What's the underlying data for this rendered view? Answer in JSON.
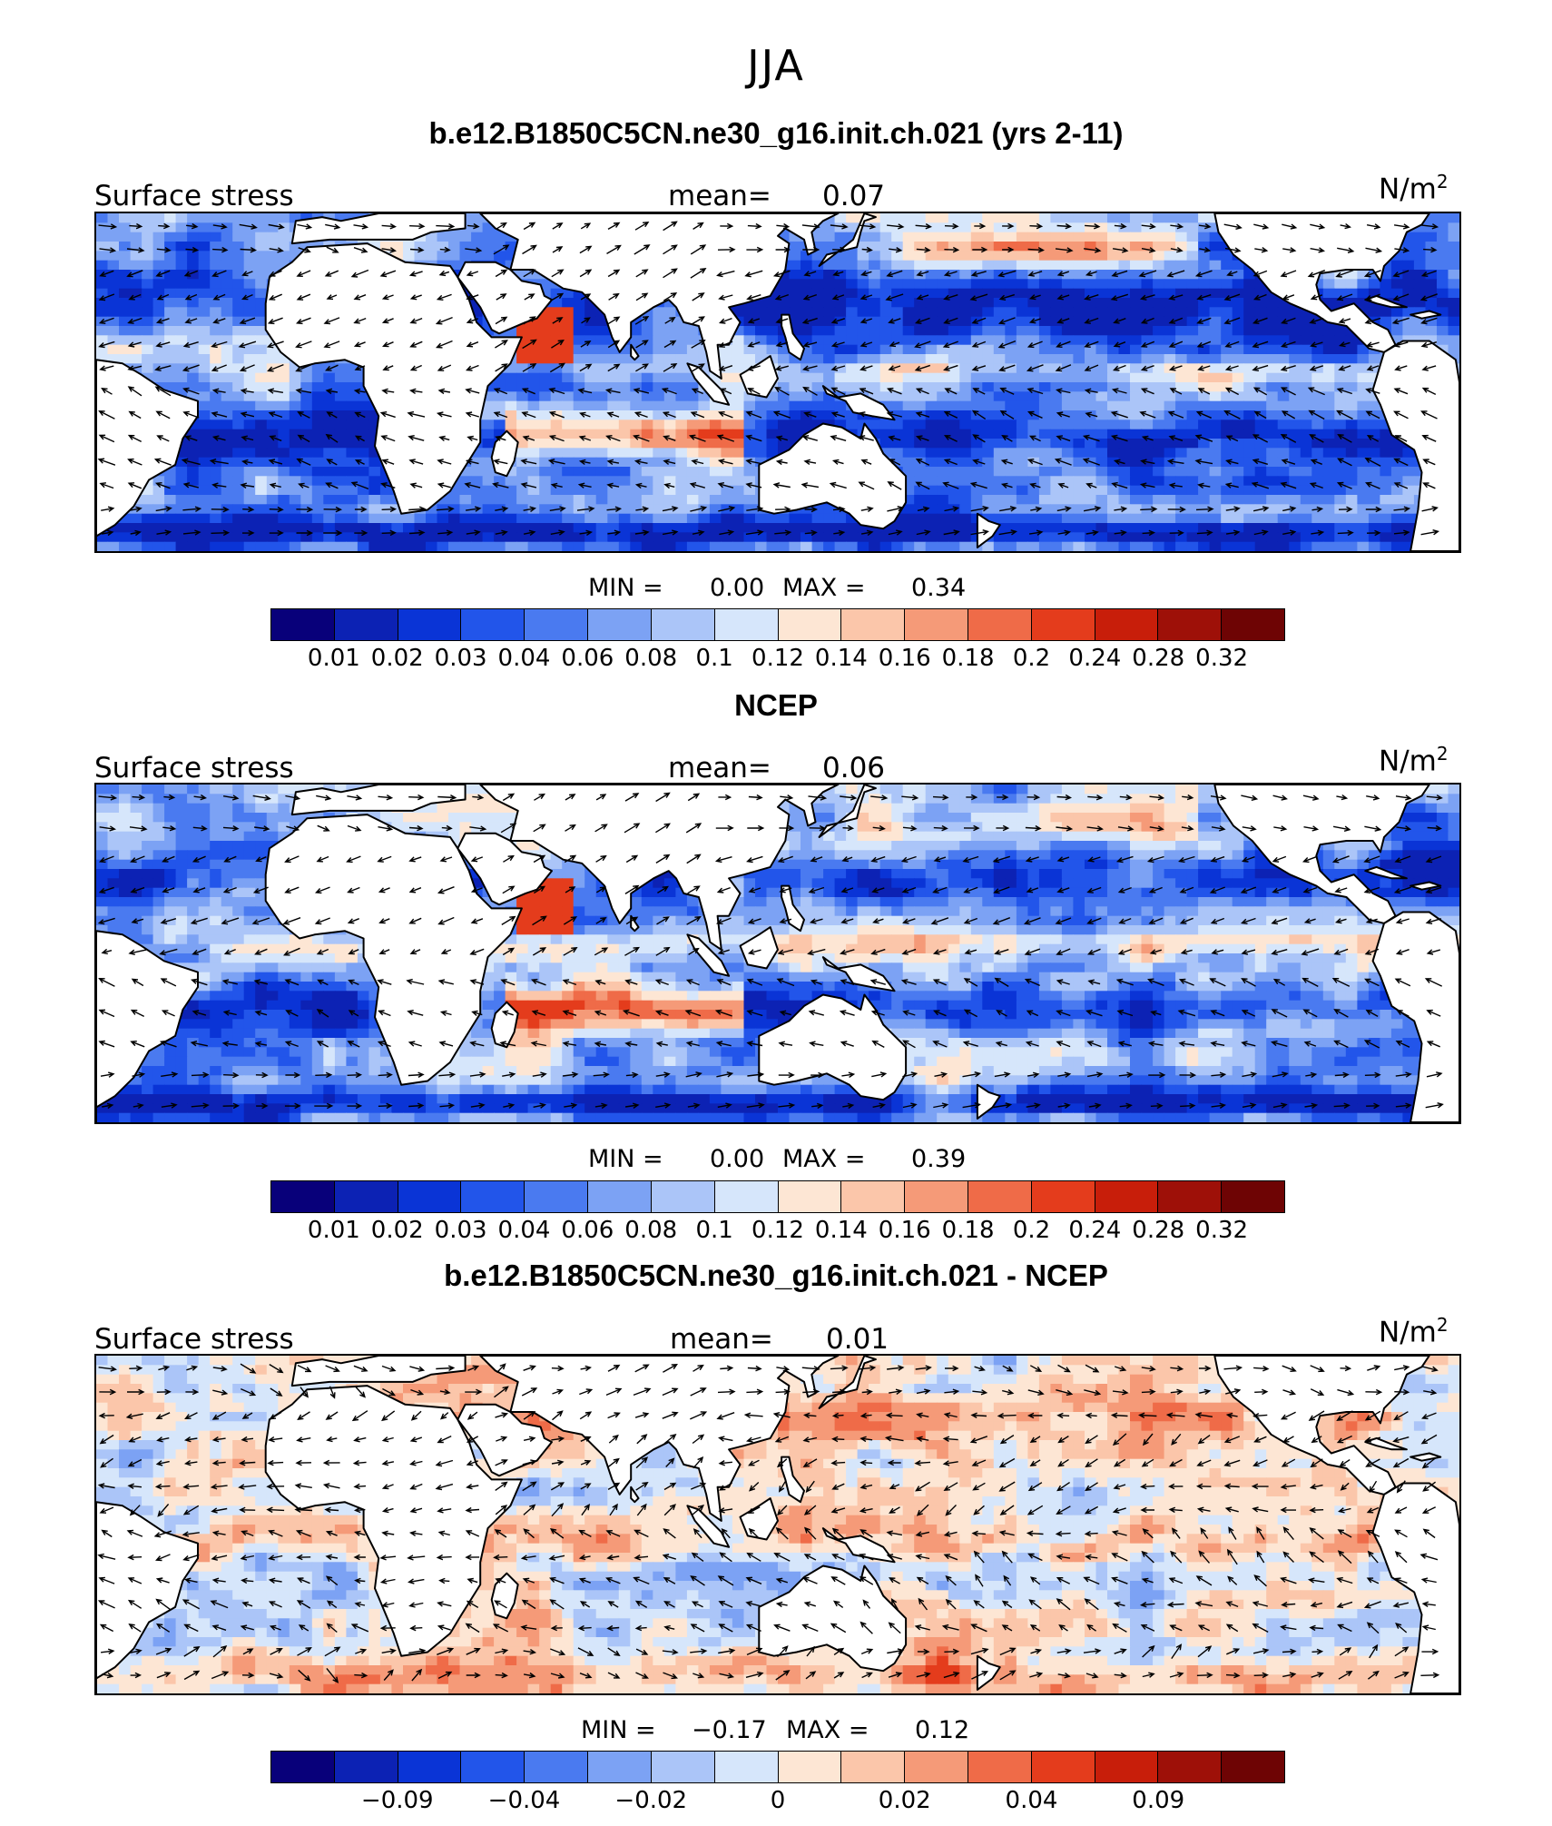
{
  "figure_title": "JJA",
  "palette": [
    "#08007a",
    "#0c22b4",
    "#0a34d6",
    "#2255ea",
    "#4a7af0",
    "#7ca2f4",
    "#abc5f8",
    "#d6e6fb",
    "#fde6d4",
    "#fbc6aa",
    "#f59a78",
    "#ef6b48",
    "#e43c1c",
    "#c81e0a",
    "#9e1008",
    "#6e0404"
  ],
  "land_color": "#ffffff",
  "panels": [
    {
      "title": "b.e12.B1850C5CN.ne30_g16.init.ch.021 (yrs 2-11)",
      "left_label": "Surface stress",
      "mean_label": "mean=",
      "mean_value": "0.07",
      "units": "N/m",
      "units_sup": "2",
      "min_label": "MIN =",
      "min_value": "0.00",
      "max_label": "MAX =",
      "max_value": "0.34",
      "colorbar_ticks": [
        "0.01",
        "0.02",
        "0.03",
        "0.04",
        "0.06",
        "0.08",
        "0.1",
        "0.12",
        "0.14",
        "0.16",
        "0.18",
        "0.2",
        "0.24",
        "0.28",
        "0.32"
      ]
    },
    {
      "title": "NCEP",
      "left_label": "Surface stress",
      "mean_label": "mean=",
      "mean_value": "0.06",
      "units": "N/m",
      "units_sup": "2",
      "min_label": "MIN =",
      "min_value": "0.00",
      "max_label": "MAX =",
      "max_value": "0.39",
      "colorbar_ticks": [
        "0.01",
        "0.02",
        "0.03",
        "0.04",
        "0.06",
        "0.08",
        "0.1",
        "0.12",
        "0.14",
        "0.16",
        "0.18",
        "0.2",
        "0.24",
        "0.28",
        "0.32"
      ]
    },
    {
      "title": "b.e12.B1850C5CN.ne30_g16.init.ch.021 - NCEP",
      "left_label": "Surface stress",
      "mean_label": "mean=",
      "mean_value": "0.01",
      "units": "N/m",
      "units_sup": "2",
      "min_label": "MIN =",
      "min_value": "−0.17",
      "max_label": "MAX =",
      "max_value": "0.12",
      "colorbar_ticks": [
        "−0.09",
        "−0.04",
        "−0.02",
        "0",
        "0.02",
        "0.04",
        "0.09"
      ]
    }
  ]
}
